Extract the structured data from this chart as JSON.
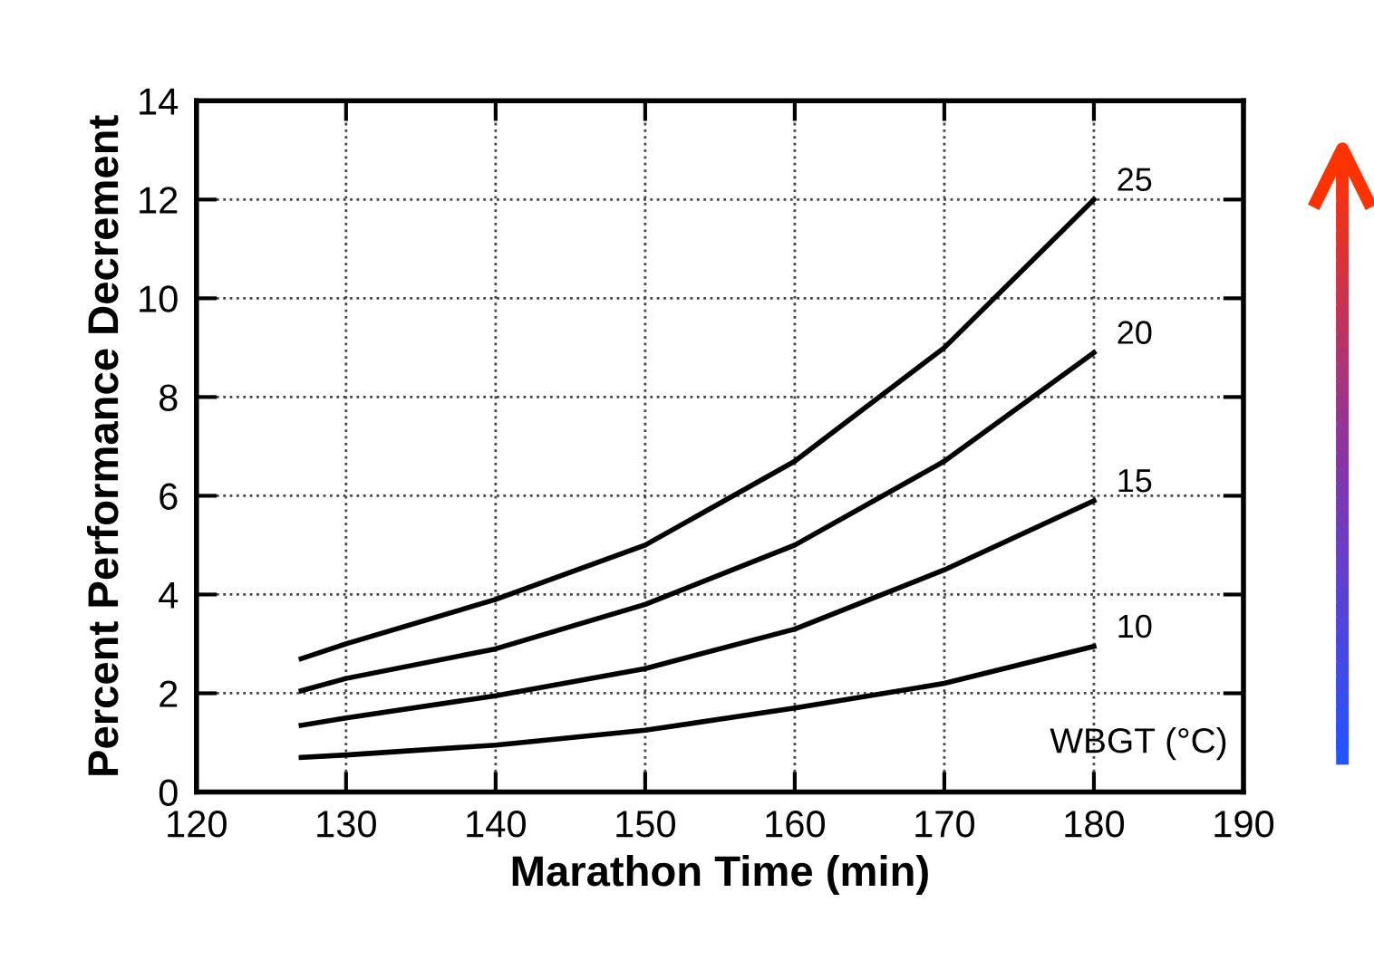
{
  "chart_data": {
    "type": "line",
    "xlabel": "Marathon Time (min)",
    "ylabel": "Percent Performance Decrement",
    "legend_title": "WBGT (°C)",
    "xlim": [
      120,
      190
    ],
    "xticks": [
      120,
      130,
      140,
      150,
      160,
      170,
      180,
      190
    ],
    "ylim": [
      0,
      14
    ],
    "yticks": [
      0,
      2,
      4,
      6,
      8,
      10,
      12,
      14
    ],
    "grid": true,
    "marker": "none",
    "line_style": "solid",
    "legend": "right",
    "series": [
      {
        "name": "25",
        "color": "#000000",
        "x": [
          127,
          130,
          140,
          150,
          160,
          170,
          180
        ],
        "values": [
          2.7,
          3.0,
          3.9,
          5.0,
          6.7,
          9.0,
          12.0
        ]
      },
      {
        "name": "20",
        "color": "#000000",
        "x": [
          127,
          130,
          140,
          150,
          160,
          170,
          180
        ],
        "values": [
          2.05,
          2.3,
          2.9,
          3.8,
          5.0,
          6.7,
          8.9
        ]
      },
      {
        "name": "15",
        "color": "#000000",
        "x": [
          127,
          130,
          140,
          150,
          160,
          170,
          180
        ],
        "values": [
          1.35,
          1.5,
          1.95,
          2.5,
          3.3,
          4.5,
          5.9
        ]
      },
      {
        "name": "10",
        "color": "#000000",
        "x": [
          127,
          130,
          140,
          150,
          160,
          170,
          180
        ],
        "values": [
          0.7,
          0.75,
          0.95,
          1.25,
          1.7,
          2.2,
          2.95
        ]
      }
    ]
  }
}
